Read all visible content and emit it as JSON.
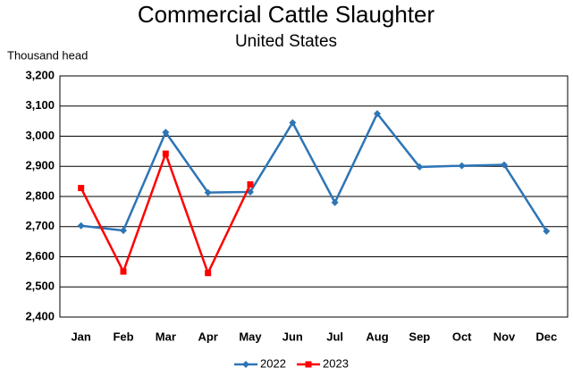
{
  "chart_data": {
    "type": "line",
    "title": "Commercial Cattle Slaughter",
    "subtitle": "United States",
    "y_label": "Thousand head",
    "categories": [
      "Jan",
      "Feb",
      "Mar",
      "Apr",
      "May",
      "Jun",
      "Jul",
      "Aug",
      "Sep",
      "Oct",
      "Nov",
      "Dec"
    ],
    "series": [
      {
        "name": "2022",
        "color": "#2e75b6",
        "marker": "diamond",
        "values": [
          2703,
          2687,
          3013,
          2813,
          2815,
          3045,
          2780,
          3075,
          2898,
          2902,
          2905,
          2685
        ]
      },
      {
        "name": "2023",
        "color": "#ff0000",
        "marker": "square",
        "values": [
          2828,
          2551,
          2942,
          2546,
          2840,
          null,
          null,
          null,
          null,
          null,
          null,
          null
        ]
      }
    ],
    "ylim": [
      2400,
      3200
    ],
    "yticks": [
      {
        "value": 2400,
        "label": "2,400"
      },
      {
        "value": 2500,
        "label": "2,500"
      },
      {
        "value": 2600,
        "label": "2,600"
      },
      {
        "value": 2700,
        "label": "2,700"
      },
      {
        "value": 2800,
        "label": "2,800"
      },
      {
        "value": 2900,
        "label": "2,900"
      },
      {
        "value": 3000,
        "label": "3,000"
      },
      {
        "value": 3100,
        "label": "3,100"
      },
      {
        "value": 3200,
        "label": "3,200"
      }
    ],
    "grid": true,
    "legend": "bottom"
  }
}
